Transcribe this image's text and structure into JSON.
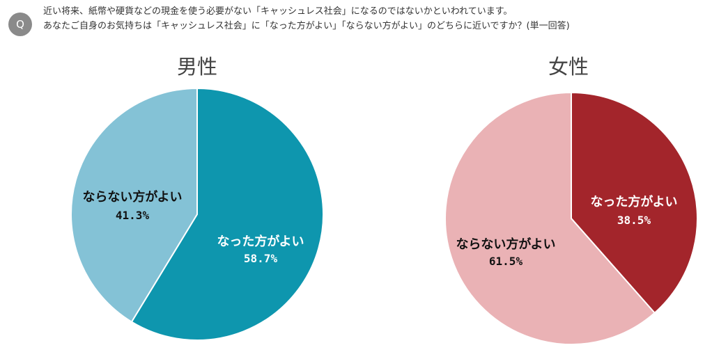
{
  "question": {
    "badge": "Q",
    "line1": "近い将来、紙幣や硬貨などの現金を使う必要がない「キャッシュレス社会」になるのではないかといわれています。",
    "line2": "あなたご自身のお気持ちは「キャッシュレス社会」に「なった方がよい」「ならない方がよい」のどちらに近いですか？(単一回答)"
  },
  "chart_data": [
    {
      "type": "pie",
      "title": "男性",
      "slices": [
        {
          "label": "なった方がよい",
          "value": 58.7,
          "display": "58.7%",
          "color": "#0e96ae",
          "text_color": "#ffffff"
        },
        {
          "label": "ならない方がよい",
          "value": 41.3,
          "display": "41.3%",
          "color": "#84c2d6",
          "text_color": "#111111"
        }
      ]
    },
    {
      "type": "pie",
      "title": "女性",
      "slices": [
        {
          "label": "なった方がよい",
          "value": 38.5,
          "display": "38.5%",
          "color": "#a3252b",
          "text_color": "#ffffff"
        },
        {
          "label": "ならない方がよい",
          "value": 61.5,
          "display": "61.5%",
          "color": "#eab2b5",
          "text_color": "#111111"
        }
      ]
    }
  ]
}
